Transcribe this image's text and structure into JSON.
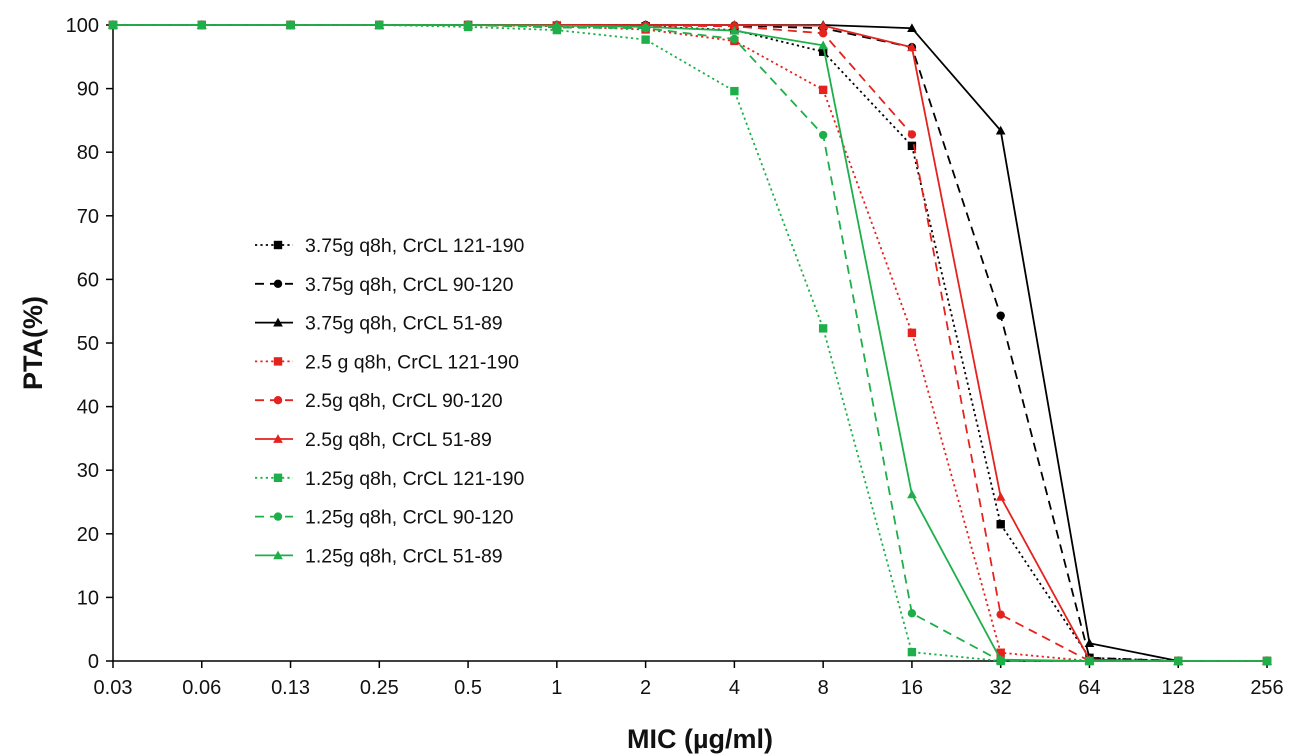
{
  "chart_data": {
    "type": "line",
    "title": "",
    "xlabel": "MIC (µg/ml)",
    "ylabel": "PTA(%)",
    "x_scale": "log2",
    "x": [
      "0.03",
      "0.06",
      "0.13",
      "0.25",
      "0.5",
      "1",
      "2",
      "4",
      "8",
      "16",
      "32",
      "64",
      "128",
      "256"
    ],
    "ylim": [
      0,
      100
    ],
    "yticks": [
      "0",
      "10",
      "20",
      "30",
      "40",
      "50",
      "60",
      "70",
      "80",
      "90",
      "100"
    ],
    "grid": false,
    "legend_position": "center-left",
    "series": [
      {
        "name": "3.75g q8h, CrCL 121-190",
        "color": "#000000",
        "dash": "dotted",
        "marker": "square",
        "values": [
          100,
          100,
          100,
          100,
          100,
          99.9,
          99.8,
          99.2,
          95.8,
          81,
          21.5,
          0.5,
          0,
          0
        ]
      },
      {
        "name": "3.75g q8h, CrCL 90-120",
        "color": "#000000",
        "dash": "dashed",
        "marker": "circle",
        "values": [
          100,
          100,
          100,
          100,
          100,
          100,
          100,
          99.9,
          99.5,
          96.5,
          54.3,
          0.5,
          0,
          0
        ]
      },
      {
        "name": "3.75g q8h, CrCL 51-89",
        "color": "#000000",
        "dash": "solid",
        "marker": "triangle",
        "values": [
          100,
          100,
          100,
          100,
          100,
          100,
          100,
          100,
          100,
          99.5,
          83.4,
          2.8,
          0,
          0
        ]
      },
      {
        "name": "2.5 g q8h, CrCL 121-190",
        "color": "#e4231f",
        "dash": "dotted",
        "marker": "square",
        "values": [
          100,
          100,
          100,
          100,
          100,
          99.8,
          99.3,
          97.5,
          89.8,
          51.6,
          1.3,
          0,
          0,
          0
        ]
      },
      {
        "name": "2.5g q8h, CrCL 90-120",
        "color": "#e4231f",
        "dash": "dashed",
        "marker": "circle",
        "values": [
          100,
          100,
          100,
          100,
          100,
          100,
          99.9,
          99.8,
          98.7,
          82.8,
          7.3,
          0,
          0,
          0
        ]
      },
      {
        "name": "2.5g q8h, CrCL 51-89",
        "color": "#e4231f",
        "dash": "solid",
        "marker": "triangle",
        "values": [
          100,
          100,
          100,
          100,
          100,
          100,
          100,
          100,
          99.9,
          96.5,
          25.8,
          0.2,
          0,
          0
        ]
      },
      {
        "name": "1.25g q8h, CrCL 121-190",
        "color": "#1eaf4a",
        "dash": "dotted",
        "marker": "square",
        "values": [
          100,
          100,
          100,
          100,
          99.7,
          99.2,
          97.7,
          89.6,
          52.3,
          1.4,
          0,
          0,
          0,
          0
        ]
      },
      {
        "name": "1.25g q8h, CrCL 90-120",
        "color": "#1eaf4a",
        "dash": "dashed",
        "marker": "circle",
        "values": [
          100,
          100,
          100,
          100,
          100,
          99.6,
          99.5,
          97.8,
          82.7,
          7.5,
          0,
          0,
          0,
          0
        ]
      },
      {
        "name": "1.25g q8h, CrCL 51-89",
        "color": "#1eaf4a",
        "dash": "solid",
        "marker": "triangle",
        "values": [
          100,
          100,
          100,
          100,
          100,
          99.9,
          99.7,
          99.1,
          96.8,
          26.2,
          0.2,
          0,
          0,
          0
        ]
      }
    ]
  }
}
